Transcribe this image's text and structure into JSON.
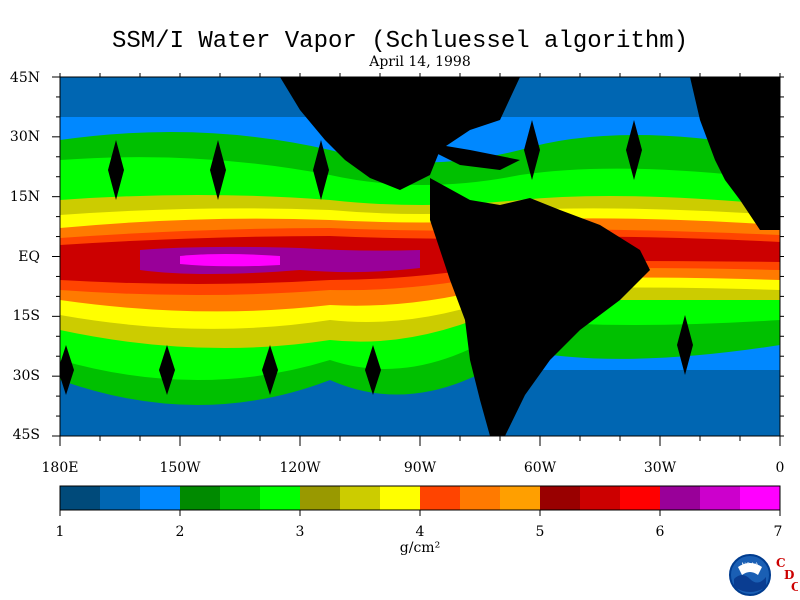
{
  "title": "SSM/I Water Vapor (Schluessel algorithm)",
  "date": "April 14, 1998",
  "lat_labels": [
    "45N",
    "30N",
    "15N",
    "EQ",
    "15S",
    "30S",
    "45S"
  ],
  "lon_labels": [
    "180E",
    "150W",
    "120W",
    "90W",
    "60W",
    "30W",
    "0"
  ],
  "colorbar": {
    "min": 1,
    "max": 7,
    "tick_labels": [
      "1",
      "2",
      "3",
      "4",
      "5",
      "6",
      "7"
    ],
    "unit": "g/cm²",
    "colors": [
      "#004a7a",
      "#0066b2",
      "#0088ff",
      "#008a00",
      "#00c000",
      "#00ff00",
      "#999900",
      "#cccc00",
      "#ffff00",
      "#ff4400",
      "#ff7a00",
      "#ff9f00",
      "#990000",
      "#cc0000",
      "#ff0000",
      "#990099",
      "#cc00cc",
      "#ff00ff"
    ]
  },
  "map": {
    "lat_range": [
      -45,
      45
    ],
    "lon_range": [
      -180,
      0
    ],
    "land_color": "#000000"
  },
  "logos": {
    "noaa_text": "NOAA",
    "cdc_letters": [
      "C",
      "D",
      "C"
    ]
  }
}
